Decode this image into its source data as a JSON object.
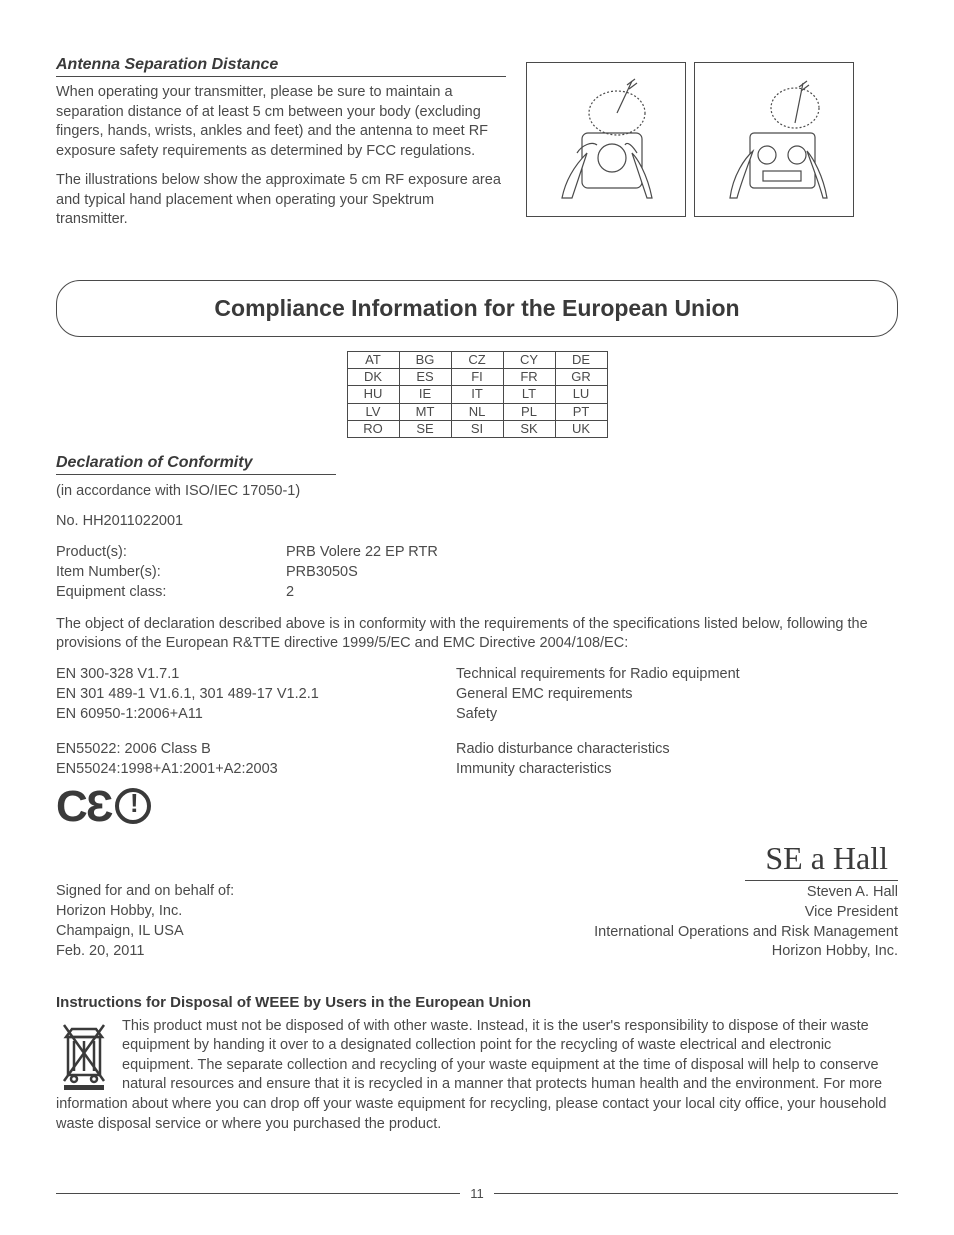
{
  "antenna": {
    "heading": "Antenna Separation Distance",
    "p1": "When operating your transmitter, please be sure to maintain a separation distance of at least 5 cm between your body (excluding fingers, hands, wrists, ankles and feet) and the antenna to meet RF exposure safety requirements as determined by FCC regulations.",
    "p2": "The illustrations below show the approximate 5 cm RF exposure area and typical hand placement when operating your Spektrum transmitter."
  },
  "eu": {
    "banner_title": "Compliance Information for the European Union",
    "countries": [
      [
        "AT",
        "BG",
        "CZ",
        "CY",
        "DE"
      ],
      [
        "DK",
        "ES",
        "FI",
        "FR",
        "GR"
      ],
      [
        "HU",
        "IE",
        "IT",
        "LT",
        "LU"
      ],
      [
        "LV",
        "MT",
        "NL",
        "PL",
        "PT"
      ],
      [
        "RO",
        "SE",
        "SI",
        "SK",
        "UK"
      ]
    ]
  },
  "doc": {
    "heading": "Declaration of Conformity",
    "accordance": "(in accordance with ISO/IEC 17050-1)",
    "number": "No. HH2011022001",
    "product_lbl": "Product(s):",
    "product_val": "PRB Volere 22 EP RTR",
    "item_lbl": "Item Number(s):",
    "item_val": "PRB3050S",
    "equip_lbl": "Equipment class:",
    "equip_val": "2",
    "declaration": "The object of declaration described above is in conformity with the requirements of the specifications listed below, following the provisions of the European R&TTE directive 1999/5/EC and EMC Directive 2004/108/EC:",
    "specs": [
      {
        "std": "EN 300-328   V1.7.1",
        "desc": "Technical requirements for Radio equipment"
      },
      {
        "std": "EN 301 489-1 V1.6.1, 301 489-17 V1.2.1",
        "desc": "General EMC requirements"
      },
      {
        "std": "EN 60950-1:2006+A11",
        "desc": "Safety"
      }
    ],
    "specs2": [
      {
        "std": "EN55022: 2006 Class B",
        "desc": "Radio disturbance characteristics"
      },
      {
        "std": "EN55024:1998+A1:2001+A2:2003",
        "desc": "Immunity characteristics"
      }
    ],
    "ce_text": "CЄ",
    "sign_left": {
      "l1": "Signed for and on behalf of:",
      "l2": "Horizon Hobby, Inc.",
      "l3": "Champaign, IL USA",
      "l4": "Feb. 20, 2011"
    },
    "sign_right": {
      "signature": "SE a Hall",
      "name": "Steven A. Hall",
      "title": "Vice President",
      "dept": "International Operations and Risk Management",
      "company": "Horizon Hobby, Inc."
    }
  },
  "weee": {
    "heading": "Instructions for Disposal of WEEE by Users in the European Union",
    "body": "This product must not be disposed of with other waste. Instead, it is the user's responsibility to dispose of their waste equipment by handing it over to a designated collection point for the recycling of waste electrical and electronic equipment. The separate collection and recycling of your waste equipment at the time of disposal will help to conserve natural resources and ensure that it is recycled in a manner that protects human health and the environment. For more information about where you can drop off your waste equipment for recycling, please contact your local city office, your household waste disposal service or where you purchased the product."
  },
  "page_number": "11"
}
